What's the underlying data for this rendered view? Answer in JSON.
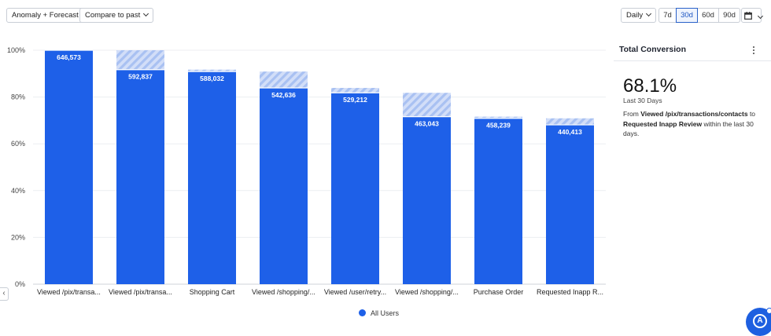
{
  "toolbar": {
    "anomaly_label": "Anomaly + Forecast",
    "compare_label": "Compare to past",
    "interval_label": "Daily",
    "ranges": [
      "7d",
      "30d",
      "60d",
      "90d"
    ],
    "active_range": "30d",
    "calendar_icon": "calendar-icon"
  },
  "chart_data": {
    "type": "bar",
    "categories": [
      "Viewed /pix/transa...",
      "Viewed /pix/transa...",
      "Shopping Cart",
      "Viewed /shopping/...",
      "Viewed /user/retry...",
      "Viewed /shopping/...",
      "Purchase Order",
      "Requested Inapp R..."
    ],
    "series": [
      {
        "name": "All Users",
        "values": [
          100,
          91.7,
          90.9,
          83.9,
          81.8,
          71.6,
          70.9,
          68.1
        ],
        "labels": [
          "646,573",
          "592,837",
          "588,032",
          "542,636",
          "529,212",
          "463,043",
          "458,239",
          "440,413"
        ]
      }
    ],
    "previous_step_top": [
      null,
      100,
      91.7,
      90.9,
      83.9,
      81.8,
      71.6,
      70.9
    ],
    "yticks": [
      "0%",
      "20%",
      "40%",
      "60%",
      "80%",
      "100%"
    ],
    "ylim": [
      0,
      100
    ],
    "grid": true,
    "legend": "bottom",
    "colors": {
      "bar": "#1e60e8",
      "dropoff": "#a9c1f2"
    }
  },
  "panel": {
    "title": "Total Conversion",
    "value": "68.1%",
    "period": "Last 30 Days",
    "desc_from": "From ",
    "desc_start": "Viewed /pix/transactions/contacts",
    "desc_to": " to ",
    "desc_end": "Requested Inapp Review",
    "desc_tail": " within the last 30 days."
  },
  "legend": {
    "label": "All Users"
  }
}
